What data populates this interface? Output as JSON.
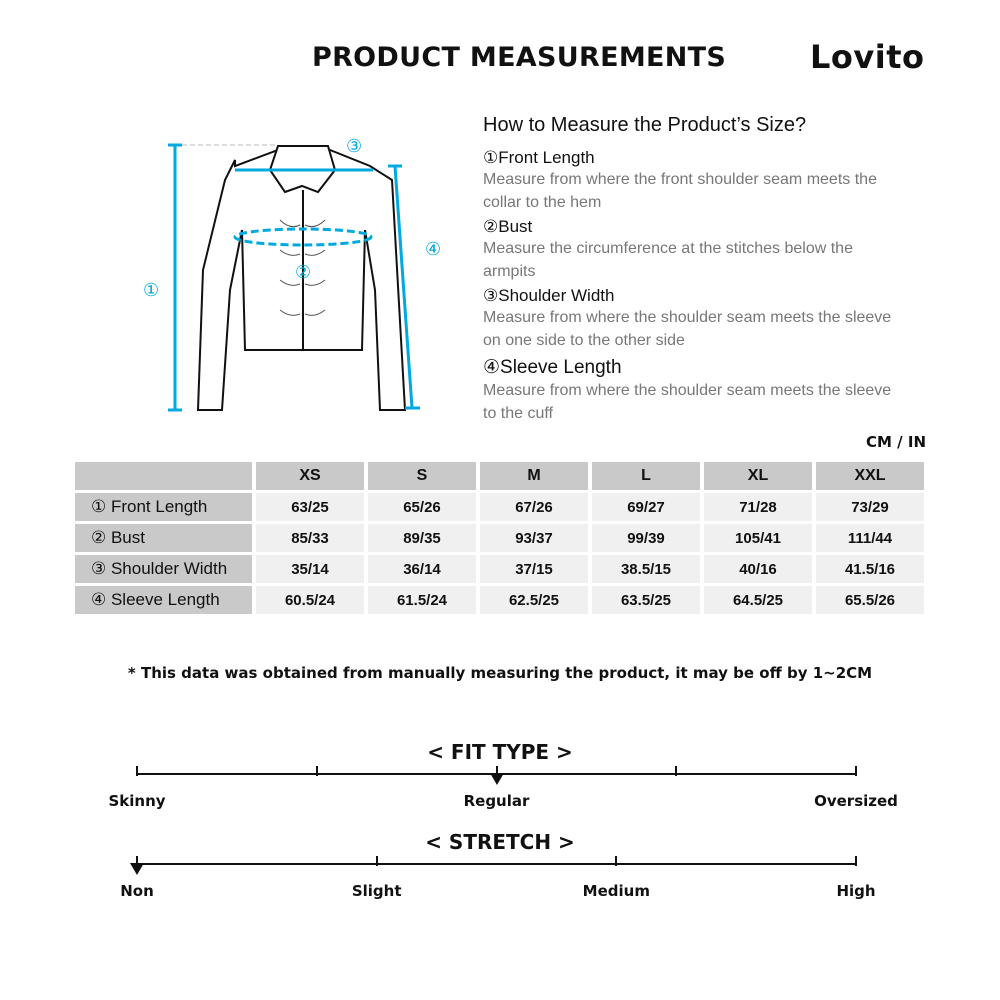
{
  "header": {
    "title": "PRODUCT MEASUREMENTS",
    "brand": "Lovito"
  },
  "guide": {
    "title": "How to Measure the Product’s Size?",
    "items": [
      {
        "heading": "①Front Length",
        "desc": "Measure from where the front shoulder seam meets the collar to the hem"
      },
      {
        "heading": "②Bust",
        "desc": "Measure the circumference at the stitches below the armpits"
      },
      {
        "heading": "③Shoulder Width",
        "desc": "Measure from where the shoulder seam meets the sleeve on one side to the other side"
      },
      {
        "heading": "④Sleeve Length",
        "desc": "Measure from where the shoulder seam meets the sleeve to the cuff"
      }
    ]
  },
  "diagram": {
    "markers": [
      "①",
      "②",
      "③",
      "④"
    ],
    "accent": "#00a9e0"
  },
  "table": {
    "units": "CM / IN",
    "sizes": [
      "XS",
      "S",
      "M",
      "L",
      "XL",
      "XXL"
    ],
    "rows": [
      {
        "label": "① Front Length",
        "values": [
          "63/25",
          "65/26",
          "67/26",
          "69/27",
          "71/28",
          "73/29"
        ]
      },
      {
        "label": "② Bust",
        "values": [
          "85/33",
          "89/35",
          "93/37",
          "99/39",
          "105/41",
          "111/44"
        ]
      },
      {
        "label": "③ Shoulder Width",
        "values": [
          "35/14",
          "36/14",
          "37/15",
          "38.5/15",
          "40/16",
          "41.5/16"
        ]
      },
      {
        "label": "④ Sleeve Length",
        "values": [
          "60.5/24",
          "61.5/24",
          "62.5/25",
          "63.5/25",
          "64.5/25",
          "65.5/26"
        ]
      }
    ]
  },
  "note": "* This data was obtained from manually measuring the product, it may be off by 1~2CM",
  "fit": {
    "title": "< FIT TYPE >",
    "labels": [
      "Skinny",
      "Regular",
      "Oversized"
    ],
    "selected": "Regular",
    "position": 0.5
  },
  "stretch": {
    "title": "< STRETCH >",
    "labels": [
      "Non",
      "Slight",
      "Medium",
      "High"
    ],
    "selected": "Non",
    "position": 0
  }
}
